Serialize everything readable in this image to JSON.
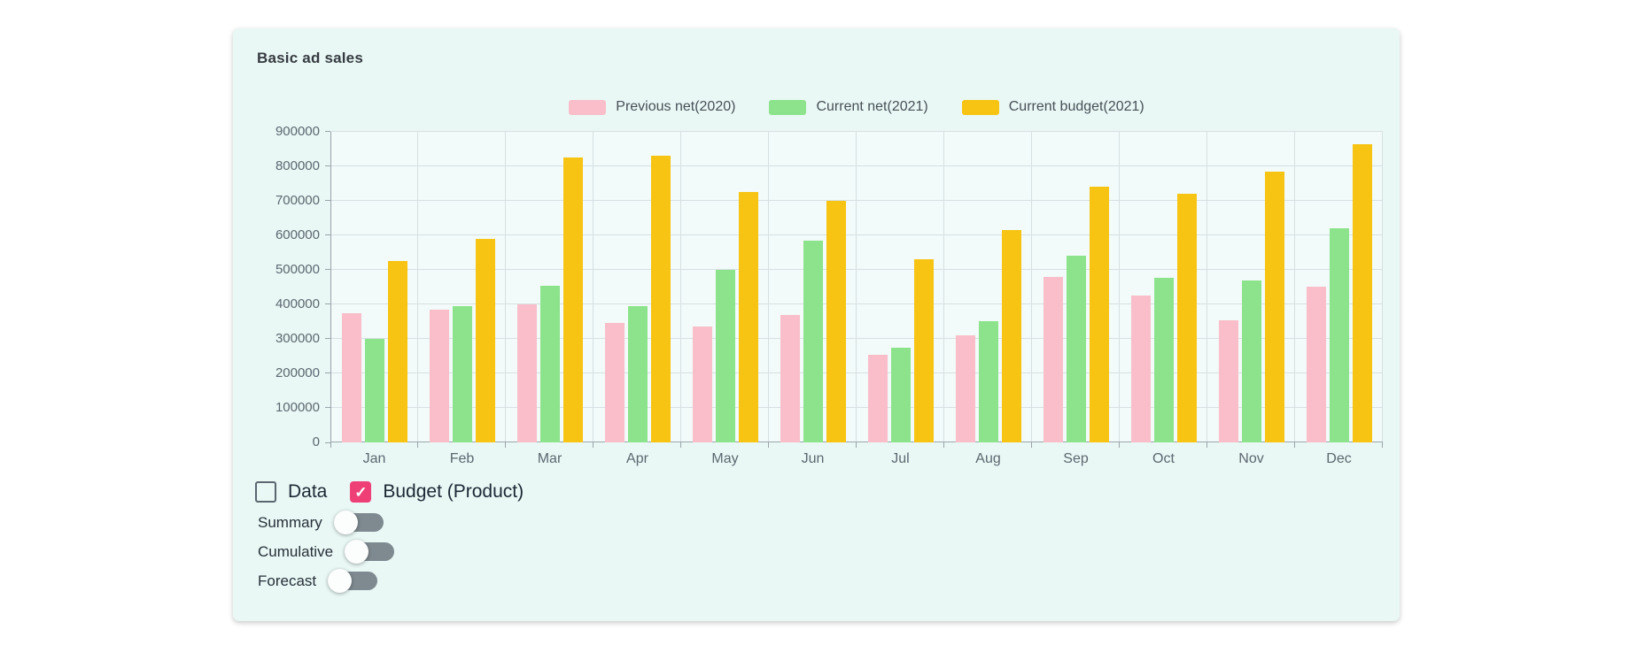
{
  "card": {
    "title": "Basic ad sales"
  },
  "legend": [
    {
      "label": "Previous net(2020)",
      "color": "#f9bec9"
    },
    {
      "label": "Current net(2021)",
      "color": "#8ce38c"
    },
    {
      "label": "Current budget(2021)",
      "color": "#f7c413"
    }
  ],
  "chart_data": {
    "type": "bar",
    "title": "Basic ad sales",
    "categories": [
      "Jan",
      "Feb",
      "Mar",
      "Apr",
      "May",
      "Jun",
      "Jul",
      "Aug",
      "Sep",
      "Oct",
      "Nov",
      "Dec"
    ],
    "series": [
      {
        "name": "Previous net(2020)",
        "color": "#f9bec9",
        "values": [
          375000,
          385000,
          400000,
          345000,
          335000,
          370000,
          255000,
          310000,
          480000,
          425000,
          355000,
          450000
        ]
      },
      {
        "name": "Current net(2021)",
        "color": "#8ce38c",
        "values": [
          300000,
          395000,
          455000,
          395000,
          500000,
          585000,
          275000,
          350000,
          540000,
          478000,
          468000,
          620000
        ]
      },
      {
        "name": "Current budget(2021)",
        "color": "#f7c413",
        "values": [
          525000,
          590000,
          825000,
          830000,
          725000,
          700000,
          530000,
          615000,
          740000,
          720000,
          785000,
          865000
        ]
      }
    ],
    "ylim": [
      0,
      900000
    ],
    "yticks": [
      "0",
      "100000",
      "200000",
      "300000",
      "400000",
      "500000",
      "600000",
      "700000",
      "800000",
      "900000"
    ],
    "grid": true,
    "legend_position": "top",
    "xlabel": "",
    "ylabel": ""
  },
  "controls": {
    "checkmark": "✓",
    "accent_color": "#ee4077",
    "checkboxes": [
      {
        "label": "Data",
        "checked": false
      },
      {
        "label": "Budget (Product)",
        "checked": true
      }
    ],
    "toggles": [
      {
        "label": "Summary",
        "on": false
      },
      {
        "label": "Cumulative",
        "on": false
      },
      {
        "label": "Forecast",
        "on": false
      }
    ]
  }
}
